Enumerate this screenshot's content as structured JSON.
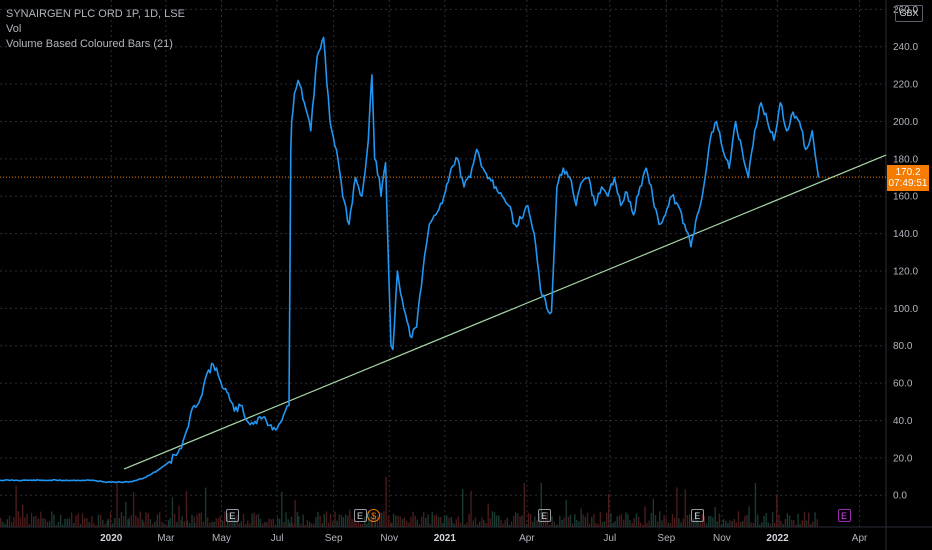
{
  "header": {
    "symbol_line": "SYNAIRGEN PLC ORD 1P, 1D, LSE",
    "indicator_1": "Vol",
    "indicator_2": "Volume Based Coloured Bars (21)"
  },
  "currency_label": "GBX",
  "last_price": "170.2",
  "countdown": "07:49:51",
  "colors": {
    "background": "#000000",
    "price_line": "#2196f3",
    "trend_line": "#a5d6a7",
    "last_price": "#f57c00",
    "grid": "#2a2e39",
    "future_marker": "#9c27b0"
  },
  "event_markers": [
    {
      "type": "earnings",
      "label": "E",
      "date": "2020-05-13"
    },
    {
      "type": "earnings",
      "label": "E",
      "date": "2020-09-30"
    },
    {
      "type": "dividend",
      "label": "$",
      "date": "2020-10-15"
    },
    {
      "type": "earnings",
      "label": "E",
      "date": "2021-04-20"
    },
    {
      "type": "earnings",
      "label": "E",
      "date": "2021-10-05"
    },
    {
      "type": "earnings_upcoming",
      "label": "E",
      "date": "2022-03-15"
    }
  ],
  "chart_data": {
    "type": "line",
    "ylim": [
      -17,
      265
    ],
    "xlim": [
      "2019-09-01",
      "2022-04-30"
    ],
    "y_ticks": [
      "260.0",
      "240.0",
      "220.0",
      "200.0",
      "180.0",
      "160.0",
      "140.0",
      "120.0",
      "100.0",
      "80.0",
      "60.0",
      "40.0",
      "20.0",
      "0.0"
    ],
    "x_ticks": [
      {
        "label": "2020",
        "date": "2020-01-01",
        "bold": true
      },
      {
        "label": "Mar",
        "date": "2020-03-01",
        "bold": false
      },
      {
        "label": "May",
        "date": "2020-05-01",
        "bold": false
      },
      {
        "label": "Jul",
        "date": "2020-07-01",
        "bold": false
      },
      {
        "label": "Sep",
        "date": "2020-09-01",
        "bold": false
      },
      {
        "label": "Nov",
        "date": "2020-11-01",
        "bold": false
      },
      {
        "label": "2021",
        "date": "2021-01-01",
        "bold": true
      },
      {
        "label": "Apr",
        "date": "2021-04-01",
        "bold": false
      },
      {
        "label": "Jul",
        "date": "2021-07-01",
        "bold": false
      },
      {
        "label": "Sep",
        "date": "2021-09-01",
        "bold": false
      },
      {
        "label": "Nov",
        "date": "2021-11-01",
        "bold": false
      },
      {
        "label": "2022",
        "date": "2022-01-01",
        "bold": true
      },
      {
        "label": "Apr",
        "date": "2022-04-01",
        "bold": false
      }
    ],
    "series": [
      {
        "x": [
          "2019-09-01",
          "2019-10-15",
          "2019-11-25",
          "2019-12-10",
          "2019-12-28",
          "2020-01-20",
          "2020-02-05",
          "2020-02-20",
          "2020-03-05",
          "2020-03-18",
          "2020-03-24",
          "2020-04-01",
          "2020-04-08",
          "2020-04-15",
          "2020-04-22",
          "2020-04-29",
          "2020-05-07",
          "2020-05-15",
          "2020-05-22",
          "2020-05-29",
          "2020-06-05",
          "2020-06-12",
          "2020-06-19",
          "2020-06-26",
          "2020-07-03",
          "2020-07-10",
          "2020-07-14",
          "2020-07-16",
          "2020-07-17",
          "2020-07-20",
          "2020-07-24",
          "2020-07-31",
          "2020-08-07",
          "2020-08-14",
          "2020-08-21",
          "2020-08-28",
          "2020-09-04",
          "2020-09-11",
          "2020-09-18",
          "2020-09-25",
          "2020-10-02",
          "2020-10-09",
          "2020-10-13",
          "2020-10-16",
          "2020-10-21",
          "2020-10-23",
          "2020-10-28",
          "2020-11-03",
          "2020-11-05",
          "2020-11-10",
          "2020-11-17",
          "2020-11-24",
          "2020-12-01",
          "2020-12-08",
          "2020-12-15",
          "2020-12-22",
          "2020-12-31",
          "2021-01-08",
          "2021-01-15",
          "2021-01-22",
          "2021-01-29",
          "2021-02-05",
          "2021-02-12",
          "2021-02-19",
          "2021-02-26",
          "2021-03-05",
          "2021-03-12",
          "2021-03-19",
          "2021-03-26",
          "2021-04-02",
          "2021-04-09",
          "2021-04-16",
          "2021-04-23",
          "2021-04-28",
          "2021-05-04",
          "2021-05-11",
          "2021-05-18",
          "2021-05-25",
          "2021-06-01",
          "2021-06-08",
          "2021-06-15",
          "2021-06-22",
          "2021-06-29",
          "2021-07-06",
          "2021-07-13",
          "2021-07-20",
          "2021-07-27",
          "2021-08-03",
          "2021-08-10",
          "2021-08-17",
          "2021-08-24",
          "2021-08-31",
          "2021-09-07",
          "2021-09-14",
          "2021-09-21",
          "2021-09-28",
          "2021-10-05",
          "2021-10-12",
          "2021-10-19",
          "2021-10-26",
          "2021-11-02",
          "2021-11-09",
          "2021-11-16",
          "2021-11-23",
          "2021-11-30",
          "2021-12-07",
          "2021-12-14",
          "2021-12-21",
          "2021-12-28",
          "2022-01-04",
          "2022-01-11",
          "2022-01-18",
          "2022-01-25",
          "2022-02-01",
          "2022-02-08",
          "2022-02-15"
        ],
        "values": [
          8,
          8,
          8,
          8,
          7,
          7,
          9,
          13,
          18,
          25,
          35,
          48,
          52,
          65,
          70,
          62,
          55,
          45,
          48,
          40,
          38,
          42,
          40,
          35,
          38,
          45,
          48,
          185,
          200,
          215,
          222,
          210,
          195,
          235,
          245,
          200,
          185,
          160,
          145,
          170,
          160,
          190,
          225,
          180,
          170,
          160,
          178,
          80,
          78,
          120,
          100,
          85,
          90,
          120,
          145,
          150,
          160,
          175,
          180,
          165,
          170,
          185,
          175,
          170,
          165,
          160,
          155,
          145,
          148,
          155,
          140,
          110,
          100,
          98,
          165,
          175,
          170,
          155,
          168,
          170,
          155,
          165,
          160,
          170,
          155,
          162,
          150,
          165,
          175,
          160,
          145,
          150,
          160,
          155,
          145,
          133,
          150,
          165,
          190,
          200,
          185,
          175,
          200,
          185,
          170,
          195,
          210,
          200,
          190,
          210,
          195,
          205,
          200,
          185,
          195,
          170
        ]
      },
      {
        "x": [
          "2020-01-15",
          "2022-04-30"
        ],
        "values": [
          14,
          182
        ]
      }
    ]
  }
}
